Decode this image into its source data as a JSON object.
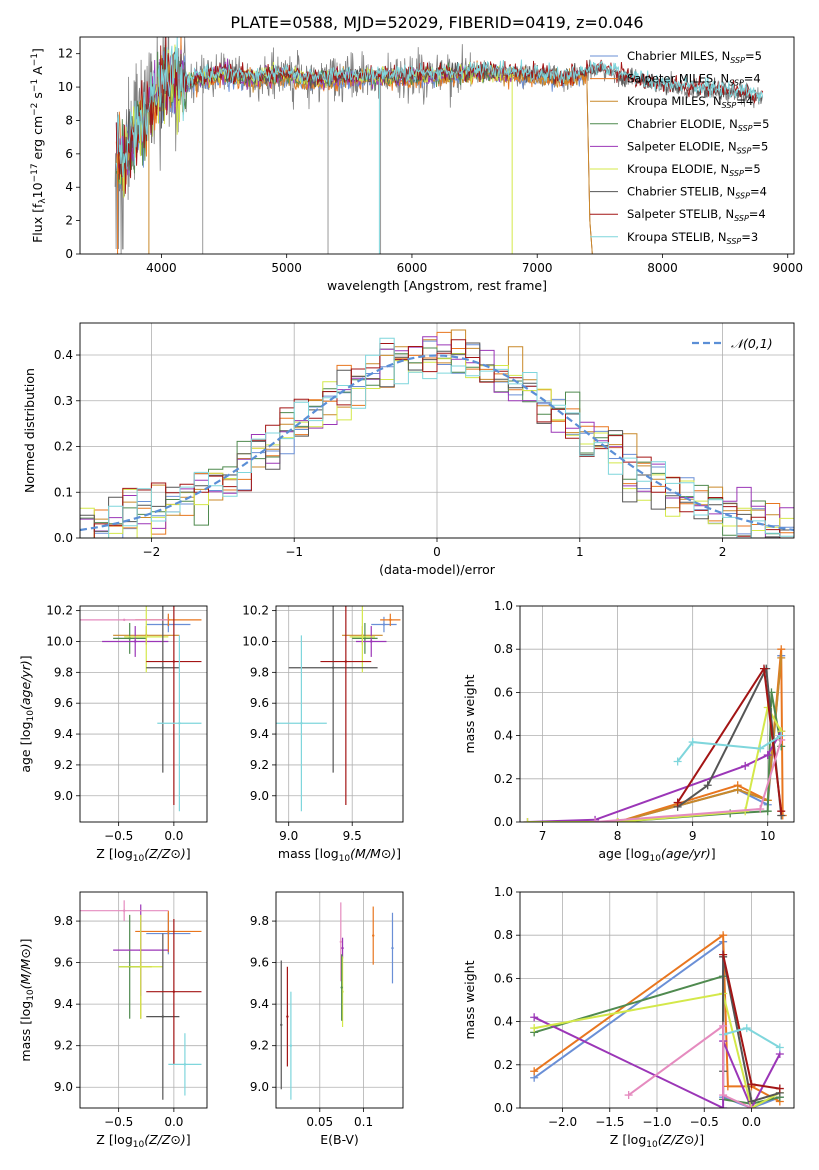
{
  "figure": {
    "title": "PLATE=0588, MJD=52029, FIBERID=0419, z=0.046"
  },
  "colors": {
    "Chabrier MILES": "#6a8fd6",
    "Salpeter MILES": "#e8761f",
    "Kroupa MILES": "#c9892a",
    "Chabrier ELODIE": "#4f8a4f",
    "Salpeter ELODIE": "#9b36b7",
    "Kroupa ELODIE": "#d4e84a",
    "Chabrier STELIB": "#555555",
    "Salpeter STELIB": "#a31515",
    "Kroupa STELIB": "#7fd6dc",
    "data": "#808080",
    "gaussian": "#5b8fd6",
    "pink": "#e58bbf"
  },
  "chart_data": [
    {
      "type": "line",
      "id": "spectrum",
      "xlabel": "wavelength [Angstrom, rest frame]",
      "ylabel": "Flux [f_λ10^-17 erg cm^-2 s^-1 A^-1]",
      "xlim": [
        3350,
        9050
      ],
      "ylim": [
        0,
        13
      ],
      "xticks": [
        4000,
        5000,
        6000,
        7000,
        8000,
        9000
      ],
      "yticks": [
        0,
        2,
        4,
        6,
        8,
        10,
        12
      ],
      "legend_position": "top-right",
      "legend": [
        {
          "name": "Chabrier MILES",
          "nssp": "5"
        },
        {
          "name": "Salpeter MILES",
          "nssp": "4"
        },
        {
          "name": "Kroupa MILES",
          "nssp": "4"
        },
        {
          "name": "Chabrier ELODIE",
          "nssp": "5"
        },
        {
          "name": "Salpeter ELODIE",
          "nssp": "5"
        },
        {
          "name": "Kroupa ELODIE",
          "nssp": "5"
        },
        {
          "name": "Chabrier STELIB",
          "nssp": "4"
        },
        {
          "name": "Salpeter STELIB",
          "nssp": "4"
        },
        {
          "name": "Kroupa STELIB",
          "nssp": "3"
        }
      ],
      "continuum": {
        "x": [
          3650,
          3700,
          3800,
          3900,
          4000,
          4100,
          4200,
          4300,
          4400,
          4500,
          4700,
          5000,
          5200,
          5500,
          6000,
          6500,
          7000,
          7200,
          7500,
          7800,
          8000,
          8200,
          8500,
          8800
        ],
        "y": [
          6.0,
          5.5,
          7.5,
          8.5,
          10.0,
          10.6,
          10.2,
          10.5,
          10.6,
          10.8,
          10.5,
          10.7,
          10.4,
          10.6,
          10.6,
          10.9,
          10.7,
          10.5,
          11.0,
          10.4,
          10.0,
          9.9,
          9.7,
          9.4
        ]
      }
    },
    {
      "type": "histogram",
      "id": "residuals",
      "xlabel": "(data-model)/error",
      "ylabel": "Normed distribution",
      "xlim": [
        -2.5,
        2.5
      ],
      "ylim": [
        0,
        0.47
      ],
      "xticks": [
        -2,
        -1,
        0,
        1,
        2
      ],
      "yticks": [
        0.0,
        0.1,
        0.2,
        0.3,
        0.4
      ],
      "grid": true,
      "legend_position": "top-right",
      "legend_label": "𝒩(0,1)",
      "bin_width": 0.1
    },
    {
      "type": "scatter",
      "id": "age-vs-Z",
      "xlabel": "Z [log10(Z/Z⊙)]",
      "ylabel": "age  [log10(age/yr)]",
      "xlim": [
        -0.85,
        0.3
      ],
      "ylim": [
        8.83,
        10.23
      ],
      "xticks": [
        -0.5,
        0.0
      ],
      "yticks": [
        9.0,
        9.2,
        9.4,
        9.6,
        9.8,
        10.0,
        10.2
      ],
      "grid": true,
      "points": [
        {
          "series": "Chabrier MILES",
          "x": -0.05,
          "xerr": 0.2,
          "y": 10.11,
          "yerr": 0.05
        },
        {
          "series": "Salpeter MILES",
          "x": -0.05,
          "xerr": 0.3,
          "y": 10.14,
          "yerr": 0.04
        },
        {
          "series": "Kroupa MILES",
          "x": -0.25,
          "xerr": 0.3,
          "y": 10.04,
          "yerr": 0.06
        },
        {
          "series": "Chabrier ELODIE",
          "x": -0.4,
          "xerr": 0.15,
          "y": 10.02,
          "yerr": 0.1
        },
        {
          "series": "Salpeter ELODIE",
          "x": -0.35,
          "xerr": 0.3,
          "y": 10.0,
          "yerr": 0.1
        },
        {
          "series": "Kroupa ELODIE",
          "x": -0.25,
          "xerr": 0.2,
          "y": 10.03,
          "yerr": 0.23
        },
        {
          "series": "Chabrier STELIB",
          "x": -0.1,
          "xerr": 0.15,
          "y": 9.83,
          "yerr": 0.68
        },
        {
          "series": "Salpeter STELIB",
          "x": 0.0,
          "xerr": 0.25,
          "y": 9.87,
          "yerr": 0.93
        },
        {
          "series": "Kroupa STELIB",
          "x": 0.05,
          "xerr": 0.2,
          "y": 9.47,
          "yerr": 0.57
        },
        {
          "series": "pink",
          "x": -0.45,
          "xerr": 0.4,
          "y": 10.14,
          "yerr": 0.0
        }
      ]
    },
    {
      "type": "scatter",
      "id": "age-vs-mass",
      "xlabel": "mass [log10(M/M⊙)]",
      "ylabel": "",
      "xlim": [
        8.9,
        9.9
      ],
      "ylim": [
        8.83,
        10.23
      ],
      "xticks": [
        9.0,
        9.5
      ],
      "yticks": [
        9.0,
        9.2,
        9.4,
        9.6,
        9.8,
        10.0,
        10.2
      ],
      "grid": true,
      "points": [
        {
          "series": "Chabrier MILES",
          "x": 9.75,
          "xerr": 0.1,
          "y": 10.11,
          "yerr": 0.05
        },
        {
          "series": "Salpeter MILES",
          "x": 9.8,
          "xerr": 0.08,
          "y": 10.14,
          "yerr": 0.04
        },
        {
          "series": "Kroupa MILES",
          "x": 9.58,
          "xerr": 0.16,
          "y": 10.04,
          "yerr": 0.06
        },
        {
          "series": "Chabrier ELODIE",
          "x": 9.6,
          "xerr": 0.1,
          "y": 10.02,
          "yerr": 0.1
        },
        {
          "series": "Salpeter ELODIE",
          "x": 9.65,
          "xerr": 0.12,
          "y": 10.0,
          "yerr": 0.1
        },
        {
          "series": "Kroupa ELODIE",
          "x": 9.58,
          "xerr": 0.1,
          "y": 10.03,
          "yerr": 0.23
        },
        {
          "series": "Chabrier STELIB",
          "x": 9.35,
          "xerr": 0.35,
          "y": 9.83,
          "yerr": 0.68
        },
        {
          "series": "Salpeter STELIB",
          "x": 9.45,
          "xerr": 0.2,
          "y": 9.87,
          "yerr": 0.93
        },
        {
          "series": "Kroupa STELIB",
          "x": 9.1,
          "xerr": 0.2,
          "y": 9.47,
          "yerr": 0.57
        }
      ]
    },
    {
      "type": "line",
      "id": "massweight-vs-age",
      "xlabel": "age  [log10(age/yr)]",
      "ylabel": "mass weight",
      "xlim": [
        6.7,
        10.35
      ],
      "ylim": [
        0,
        1.0
      ],
      "xticks": [
        7,
        8,
        9,
        10
      ],
      "yticks": [
        0.0,
        0.2,
        0.4,
        0.6,
        0.8,
        1.0
      ],
      "grid": true,
      "series": [
        {
          "name": "Chabrier MILES",
          "x": [
            8.0,
            9.6,
            10.0,
            10.18
          ],
          "y": [
            0.0,
            0.15,
            0.08,
            0.77
          ]
        },
        {
          "name": "Salpeter MILES",
          "x": [
            8.0,
            9.6,
            10.0,
            10.18,
            10.2
          ],
          "y": [
            0.0,
            0.17,
            0.1,
            0.8,
            0.03
          ]
        },
        {
          "name": "Kroupa MILES",
          "x": [
            8.0,
            9.6,
            10.0,
            10.18
          ],
          "y": [
            0.0,
            0.15,
            0.1,
            0.76
          ]
        },
        {
          "name": "Chabrier ELODIE",
          "x": [
            8.0,
            9.5,
            10.0,
            10.05,
            10.18
          ],
          "y": [
            0.0,
            0.04,
            0.05,
            0.6,
            0.35
          ]
        },
        {
          "name": "Salpeter ELODIE",
          "x": [
            6.8,
            7.7,
            9.7,
            10.0,
            10.18
          ],
          "y": [
            0.0,
            0.01,
            0.26,
            0.31,
            0.42
          ]
        },
        {
          "name": "Kroupa ELODIE",
          "x": [
            6.8,
            8.0,
            9.7,
            10.0,
            10.18
          ],
          "y": [
            0.0,
            0.0,
            0.05,
            0.53,
            0.42
          ]
        },
        {
          "name": "Chabrier STELIB",
          "x": [
            8.8,
            9.2,
            9.98,
            10.18
          ],
          "y": [
            0.07,
            0.17,
            0.71,
            0.03
          ]
        },
        {
          "name": "Salpeter STELIB",
          "x": [
            8.8,
            9.95,
            10.18
          ],
          "y": [
            0.09,
            0.71,
            0.05
          ]
        },
        {
          "name": "Kroupa STELIB",
          "x": [
            8.8,
            9.0,
            9.9,
            10.18
          ],
          "y": [
            0.28,
            0.37,
            0.34,
            0.4
          ]
        },
        {
          "name": "pink",
          "x": [
            7.7,
            9.9,
            10.18
          ],
          "y": [
            0.0,
            0.06,
            0.38
          ]
        }
      ]
    },
    {
      "type": "scatter",
      "id": "mass-vs-Z",
      "xlabel": "Z [log10(Z/Z⊙)]",
      "ylabel": "mass [log10(M/M⊙)]",
      "xlim": [
        -0.85,
        0.3
      ],
      "ylim": [
        8.9,
        9.94
      ],
      "xticks": [
        -0.5,
        0.0
      ],
      "yticks": [
        9.0,
        9.2,
        9.4,
        9.6,
        9.8
      ],
      "grid": true,
      "points": [
        {
          "series": "Chabrier MILES",
          "x": -0.05,
          "xerr": 0.2,
          "y": 9.74,
          "yerr": 0.1
        },
        {
          "series": "Salpeter MILES",
          "x": -0.05,
          "xerr": 0.3,
          "y": 9.75,
          "yerr": 0.1
        },
        {
          "series": "Kroupa MILES",
          "x": -0.3,
          "xerr": 0.1,
          "y": 9.58,
          "yerr": 0.25
        },
        {
          "series": "Chabrier ELODIE",
          "x": -0.4,
          "xerr": 0.1,
          "y": 9.58,
          "yerr": 0.25
        },
        {
          "series": "Salpeter ELODIE",
          "x": -0.3,
          "xerr": 0.25,
          "y": 9.66,
          "yerr": 0.22
        },
        {
          "series": "Kroupa ELODIE",
          "x": -0.3,
          "xerr": 0.2,
          "y": 9.58,
          "yerr": 0.25
        },
        {
          "series": "Chabrier STELIB",
          "x": -0.1,
          "xerr": 0.15,
          "y": 9.34,
          "yerr": 0.4
        },
        {
          "series": "Salpeter STELIB",
          "x": 0.0,
          "xerr": 0.25,
          "y": 9.46,
          "yerr": 0.35
        },
        {
          "series": "Kroupa STELIB",
          "x": 0.1,
          "xerr": 0.15,
          "y": 9.11,
          "yerr": 0.15
        },
        {
          "series": "pink",
          "x": -0.45,
          "xerr": 0.4,
          "y": 9.85,
          "yerr": 0.05
        }
      ]
    },
    {
      "type": "scatter",
      "id": "mass-vs-EBV",
      "xlabel": "E(B-V)",
      "ylabel": "",
      "xlim": [
        0.0,
        0.145
      ],
      "ylim": [
        8.9,
        9.94
      ],
      "xticks": [
        0.05,
        0.1
      ],
      "yticks": [
        9.0,
        9.2,
        9.4,
        9.6,
        9.8
      ],
      "grid": true,
      "points": [
        {
          "series": "Chabrier MILES",
          "x": 0.133,
          "y": 9.67,
          "yerr": 0.17
        },
        {
          "series": "Salpeter MILES",
          "x": 0.111,
          "y": 9.73,
          "yerr": 0.14
        },
        {
          "series": "pink",
          "x": 0.074,
          "y": 9.7,
          "yerr": 0.19
        },
        {
          "series": "Salpeter ELODIE",
          "x": 0.076,
          "y": 9.67,
          "yerr": 0.05
        },
        {
          "series": "Kroupa ELODIE",
          "x": 0.076,
          "y": 9.46,
          "yerr": 0.17
        },
        {
          "series": "Chabrier ELODIE",
          "x": 0.075,
          "y": 9.48,
          "yerr": 0.16
        },
        {
          "series": "Chabrier STELIB",
          "x": 0.006,
          "y": 9.3,
          "yerr": 0.31
        },
        {
          "series": "Salpeter STELIB",
          "x": 0.013,
          "y": 9.34,
          "yerr": 0.24
        },
        {
          "series": "Kroupa STELIB",
          "x": 0.017,
          "y": 9.2,
          "yerr": 0.26
        }
      ]
    },
    {
      "type": "line",
      "id": "massweight-vs-Z",
      "xlabel": "Z [log10(Z/Z⊙)]",
      "ylabel": "mass weight",
      "xlim": [
        -2.45,
        0.45
      ],
      "ylim": [
        0,
        1.0
      ],
      "xticks": [
        -2.0,
        -1.5,
        -1.0,
        -0.5,
        0.0
      ],
      "yticks": [
        0.0,
        0.2,
        0.4,
        0.6,
        0.8,
        1.0
      ],
      "grid": true,
      "series": [
        {
          "name": "Chabrier MILES",
          "x": [
            -2.3,
            -0.3,
            -0.3,
            0.0,
            0.3
          ],
          "y": [
            0.14,
            0.77,
            0.05,
            0.0,
            0.05
          ]
        },
        {
          "name": "Salpeter MILES",
          "x": [
            -2.3,
            -0.3,
            -0.25,
            0.0,
            0.3
          ],
          "y": [
            0.17,
            0.8,
            0.1,
            0.1,
            0.03
          ]
        },
        {
          "name": "Chabrier ELODIE",
          "x": [
            -2.3,
            -0.3,
            -0.3,
            0.0,
            0.3
          ],
          "y": [
            0.35,
            0.61,
            0.04,
            0.02,
            0.05
          ]
        },
        {
          "name": "Salpeter ELODIE",
          "x": [
            -2.3,
            -0.3,
            -0.3,
            0.0,
            0.3
          ],
          "y": [
            0.42,
            0.0,
            0.31,
            0.0,
            0.25
          ]
        },
        {
          "name": "Kroupa ELODIE",
          "x": [
            -2.3,
            -0.3,
            0.0,
            0.3
          ],
          "y": [
            0.37,
            0.53,
            0.0,
            0.07
          ]
        },
        {
          "name": "Chabrier STELIB",
          "x": [
            -0.3,
            -0.3,
            0.0,
            0.3
          ],
          "y": [
            0.17,
            0.7,
            0.03,
            0.07
          ]
        },
        {
          "name": "Salpeter STELIB",
          "x": [
            -0.3,
            0.0,
            0.3
          ],
          "y": [
            0.71,
            0.11,
            0.09
          ]
        },
        {
          "name": "Kroupa STELIB",
          "x": [
            -0.3,
            -0.05,
            0.3
          ],
          "y": [
            0.34,
            0.37,
            0.28
          ]
        },
        {
          "name": "pink",
          "x": [
            -1.3,
            -0.3,
            -0.3,
            0.0
          ],
          "y": [
            0.06,
            0.38,
            0.06,
            0.0
          ]
        }
      ]
    }
  ]
}
